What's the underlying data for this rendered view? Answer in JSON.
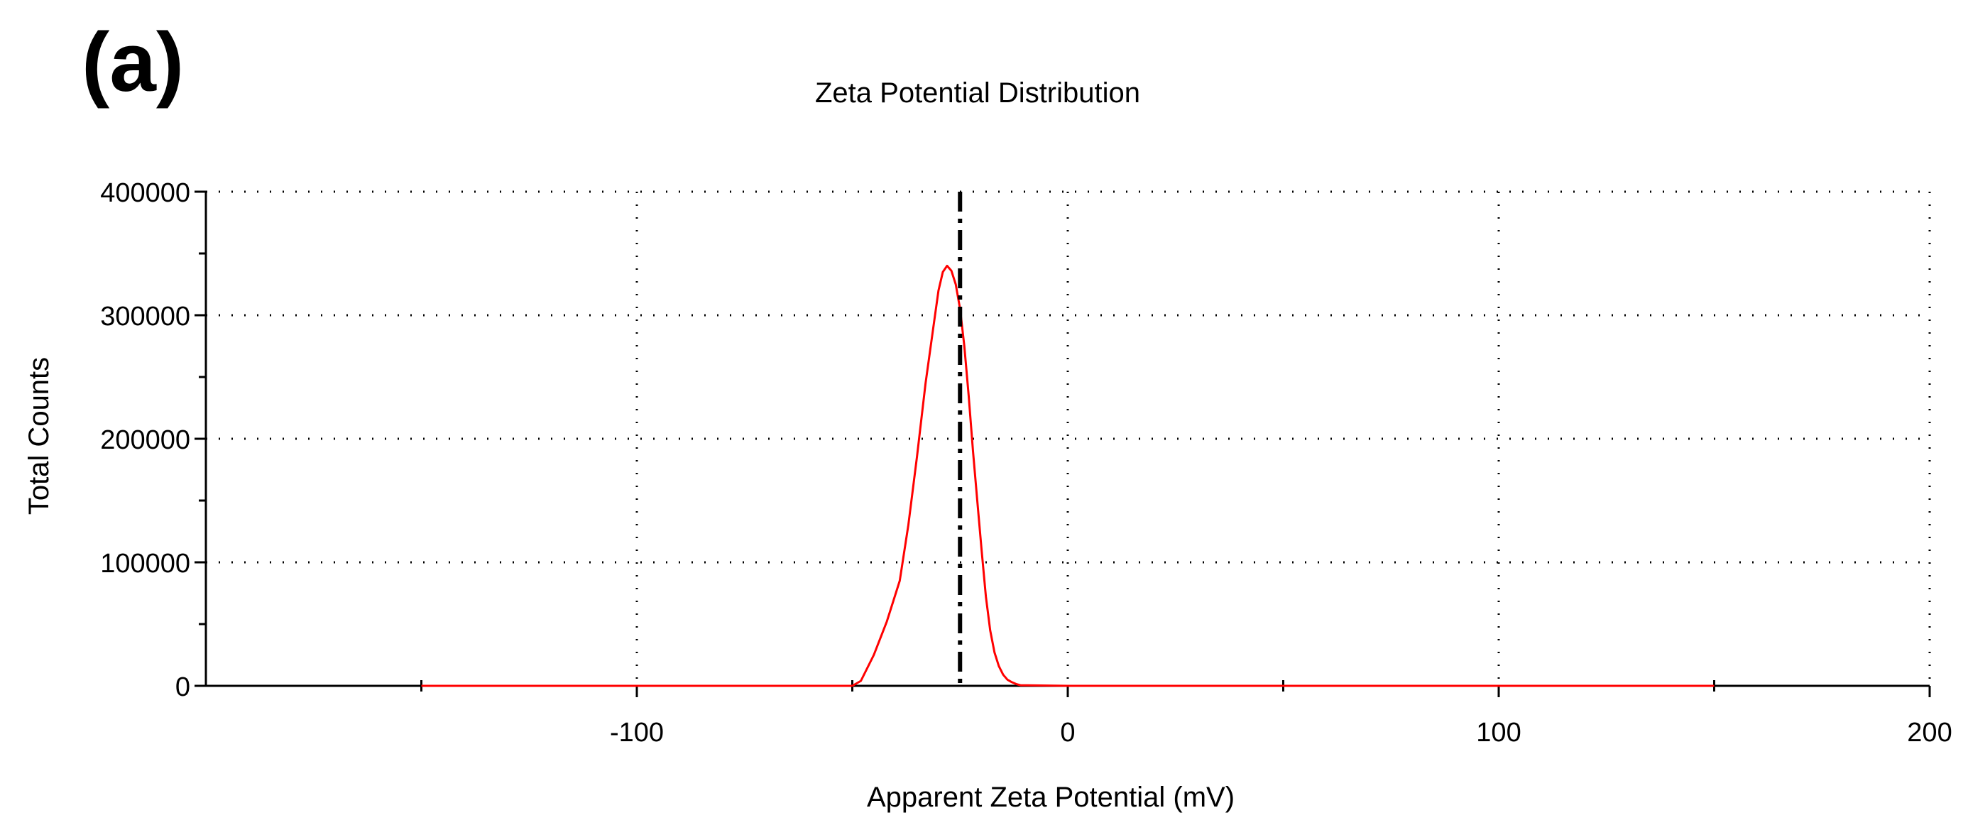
{
  "panel_label": "(a)",
  "chart_data": {
    "type": "line",
    "title": "Zeta Potential Distribution",
    "xlabel": "Apparent Zeta Potential (mV)",
    "ylabel": "Total Counts",
    "xlim": [
      -200,
      200
    ],
    "ylim": [
      0,
      400000
    ],
    "x_ticks": [
      -100,
      0,
      100,
      200
    ],
    "x_minor_ticks": [
      -150,
      -50,
      50,
      150
    ],
    "y_ticks": [
      0,
      100000,
      200000,
      300000,
      400000
    ],
    "y_minor_ticks": [
      50000,
      150000,
      250000,
      350000
    ],
    "grid": true,
    "grid_style": "dotted",
    "series": [
      {
        "color": "#ff0000",
        "x": [
          -150,
          -50,
          -48,
          -45,
          -42,
          -39,
          -37,
          -35,
          -33,
          -31,
          -30,
          -29,
          -28,
          -27,
          -26,
          -25,
          -24,
          -23,
          -22,
          -21,
          -20,
          -19,
          -18,
          -17,
          -16,
          -15,
          -14,
          -13,
          -12,
          -11,
          0,
          150
        ],
        "y": [
          0,
          0,
          4000,
          25000,
          52000,
          85000,
          130000,
          185000,
          245000,
          295000,
          320000,
          335000,
          340000,
          336000,
          325000,
          305000,
          275000,
          235000,
          190000,
          150000,
          110000,
          72000,
          45000,
          27000,
          16000,
          9000,
          5000,
          3000,
          1500,
          500,
          0,
          0
        ]
      }
    ],
    "reference_line": {
      "x": -25,
      "color": "#000000",
      "style": "dash-dot"
    }
  }
}
